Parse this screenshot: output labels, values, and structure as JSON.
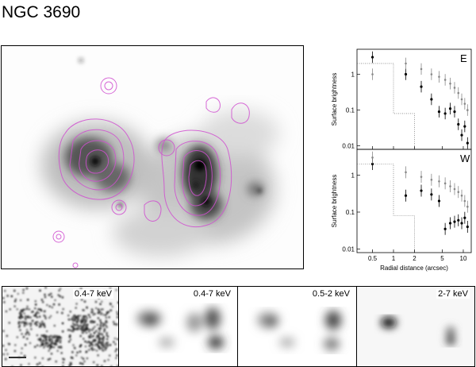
{
  "figure": {
    "title": "NGC 3690",
    "panels": [
      {
        "label": "0.4-7 keV"
      },
      {
        "label": "0.4-7 keV"
      },
      {
        "label": "0.5-2 keV"
      },
      {
        "label": "2-7 keV"
      }
    ]
  },
  "chart_data": [
    {
      "type": "scatter",
      "panel_label": "E",
      "ylabel": "Surface brightness",
      "log_x": true,
      "log_y": true,
      "xlim": [
        0.3,
        13
      ],
      "ylim": [
        0.008,
        5
      ],
      "y_ticks": [
        "0.01",
        "0.1",
        "1"
      ],
      "series": [
        {
          "points": [
            [
              0.5,
              3.0
            ],
            [
              1.5,
              1.0
            ],
            [
              2.5,
              0.45
            ],
            [
              3.5,
              0.2
            ],
            [
              4.5,
              0.09
            ],
            [
              5.5,
              0.08
            ],
            [
              6.5,
              0.11
            ],
            [
              7.5,
              0.09
            ],
            [
              8.5,
              0.04
            ],
            [
              9.5,
              0.02
            ],
            [
              10.5,
              0.035
            ],
            [
              11.5,
              0.012
            ]
          ]
        },
        {
          "points": [
            [
              0.5,
              1.0
            ],
            [
              1.5,
              2.0
            ],
            [
              2.5,
              1.4
            ],
            [
              3.5,
              1.0
            ],
            [
              4.5,
              0.85
            ],
            [
              5.5,
              0.7
            ],
            [
              6.5,
              0.55
            ],
            [
              7.5,
              0.42
            ],
            [
              8.5,
              0.3
            ],
            [
              9.5,
              0.2
            ],
            [
              10.5,
              0.15
            ],
            [
              11.5,
              0.1
            ]
          ]
        }
      ]
    },
    {
      "type": "scatter",
      "panel_label": "W",
      "ylabel": "Surface brightness",
      "xlabel": "Radial distance (arcsec)",
      "log_x": true,
      "log_y": true,
      "xlim": [
        0.3,
        13
      ],
      "ylim": [
        0.008,
        5
      ],
      "x_ticks": [
        "0.5",
        "1",
        "2",
        "5",
        "10"
      ],
      "y_ticks": [
        "0.01",
        "0.1",
        "1"
      ],
      "series": [
        {
          "points": [
            [
              0.5,
              2.0
            ],
            [
              1.5,
              0.28
            ],
            [
              2.5,
              0.38
            ],
            [
              3.5,
              0.3
            ],
            [
              4.5,
              0.2
            ],
            [
              5.5,
              0.035
            ],
            [
              6.5,
              0.05
            ],
            [
              7.5,
              0.055
            ],
            [
              8.5,
              0.06
            ],
            [
              9.5,
              0.05
            ],
            [
              10.5,
              0.07
            ],
            [
              11.5,
              0.04
            ]
          ]
        },
        {
          "points": [
            [
              0.5,
              3.0
            ],
            [
              1.5,
              1.2
            ],
            [
              2.5,
              0.9
            ],
            [
              3.5,
              0.75
            ],
            [
              4.5,
              0.68
            ],
            [
              5.5,
              0.6
            ],
            [
              6.5,
              0.5
            ],
            [
              7.5,
              0.42
            ],
            [
              8.5,
              0.35
            ],
            [
              9.5,
              0.28
            ],
            [
              10.5,
              0.2
            ],
            [
              11.5,
              0.14
            ]
          ]
        }
      ]
    }
  ]
}
